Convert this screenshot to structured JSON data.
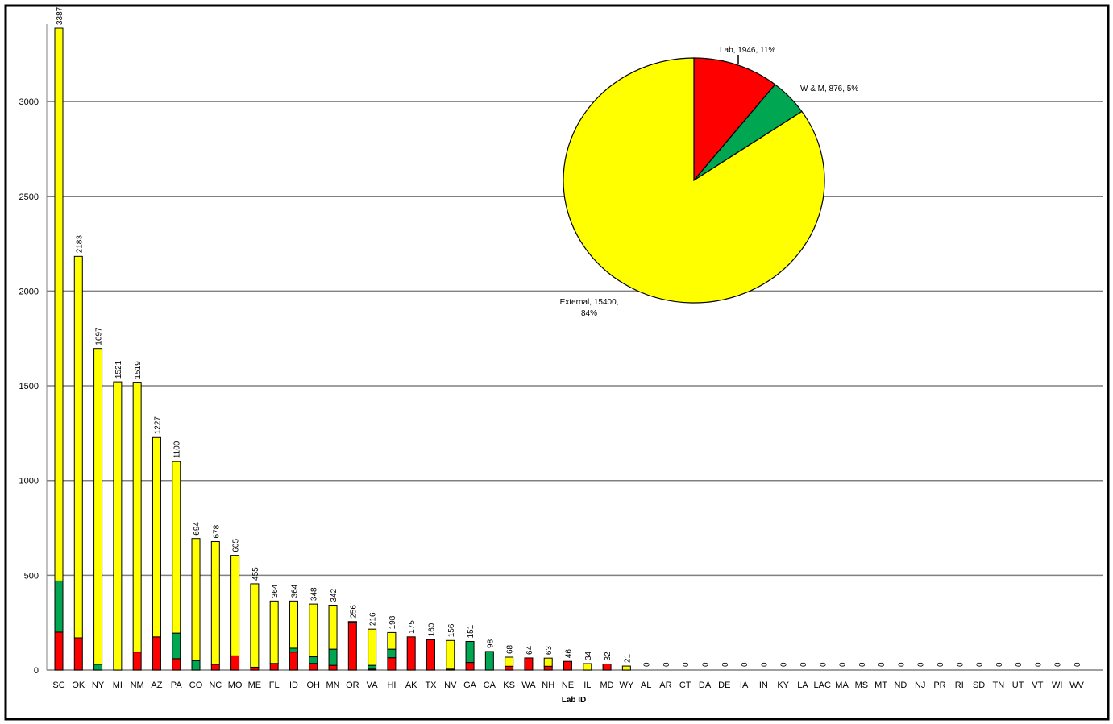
{
  "chart_data": [
    {
      "type": "bar",
      "stacked": true,
      "xlabel": "Lab ID",
      "ylabel": "",
      "ylim": [
        0,
        3400
      ],
      "yticks": [
        0,
        500,
        1000,
        1500,
        2000,
        2500,
        3000
      ],
      "grid": true,
      "colors": {
        "Lab": "#ff0000",
        "W & M": "#00a651",
        "External": "#ffff00"
      },
      "categories": [
        "SC",
        "OK",
        "NY",
        "MI",
        "NM",
        "AZ",
        "PA",
        "CO",
        "NC",
        "MO",
        "ME",
        "FL",
        "ID",
        "OH",
        "MN",
        "OR",
        "VA",
        "HI",
        "AK",
        "TX",
        "NV",
        "GA",
        "CA",
        "KS",
        "WA",
        "NH",
        "NE",
        "IL",
        "MD",
        "WY",
        "AL",
        "AR",
        "CT",
        "DA",
        "DE",
        "IA",
        "IN",
        "KY",
        "LA",
        "LAC",
        "MA",
        "MS",
        "MT",
        "ND",
        "NJ",
        "PR",
        "RI",
        "SD",
        "TN",
        "UT",
        "VT",
        "WI",
        "WV"
      ],
      "totals_labels": [
        "3387",
        "2183",
        "1697",
        "1521",
        "1519",
        "1227",
        "1100",
        "694",
        "678",
        "605",
        "455",
        "364",
        "364",
        "348",
        "342",
        "256",
        "216",
        "198",
        "175",
        "160",
        "156",
        "151",
        "98",
        "68",
        "64",
        "63",
        "46",
        "34",
        "32",
        "21",
        "0",
        "0",
        "0",
        "0",
        "0",
        "0",
        "0",
        "0",
        "0",
        "0",
        "0",
        "0",
        "0",
        "0",
        "0",
        "0",
        "0",
        "0",
        "0",
        "0",
        "0",
        "0",
        "0"
      ],
      "series": [
        {
          "name": "Lab",
          "values": [
            200,
            170,
            0,
            0,
            95,
            175,
            60,
            0,
            30,
            75,
            15,
            35,
            95,
            35,
            25,
            250,
            5,
            65,
            175,
            160,
            5,
            40,
            0,
            20,
            64,
            20,
            46,
            0,
            32,
            0,
            0,
            0,
            0,
            0,
            0,
            0,
            0,
            0,
            0,
            0,
            0,
            0,
            0,
            0,
            0,
            0,
            0,
            0,
            0,
            0,
            0,
            0,
            0
          ]
        },
        {
          "name": "W & M",
          "values": [
            270,
            0,
            30,
            0,
            0,
            0,
            135,
            50,
            0,
            0,
            0,
            0,
            20,
            35,
            85,
            5,
            20,
            45,
            0,
            0,
            0,
            111,
            98,
            0,
            0,
            0,
            0,
            0,
            0,
            0,
            0,
            0,
            0,
            0,
            0,
            0,
            0,
            0,
            0,
            0,
            0,
            0,
            0,
            0,
            0,
            0,
            0,
            0,
            0,
            0,
            0,
            0,
            0
          ]
        },
        {
          "name": "External",
          "values": [
            2917,
            2013,
            1667,
            1521,
            1424,
            1052,
            905,
            644,
            648,
            530,
            440,
            329,
            249,
            278,
            232,
            1,
            191,
            88,
            0,
            0,
            151,
            0,
            0,
            48,
            0,
            43,
            0,
            34,
            0,
            21,
            0,
            0,
            0,
            0,
            0,
            0,
            0,
            0,
            0,
            0,
            0,
            0,
            0,
            0,
            0,
            0,
            0,
            0,
            0,
            0,
            0,
            0,
            0
          ]
        }
      ]
    },
    {
      "type": "pie",
      "slices": [
        {
          "name": "Lab",
          "value": 1946,
          "percent": 11,
          "color": "#ff0000",
          "label": "Lab, 1946, 11%"
        },
        {
          "name": "W & M",
          "value": 876,
          "percent": 5,
          "color": "#00a651",
          "label": "W & M, 876, 5%"
        },
        {
          "name": "External",
          "value": 15400,
          "percent": 84,
          "color": "#ffff00",
          "label_lines": [
            "External, 15400,",
            "84%"
          ]
        }
      ]
    }
  ]
}
